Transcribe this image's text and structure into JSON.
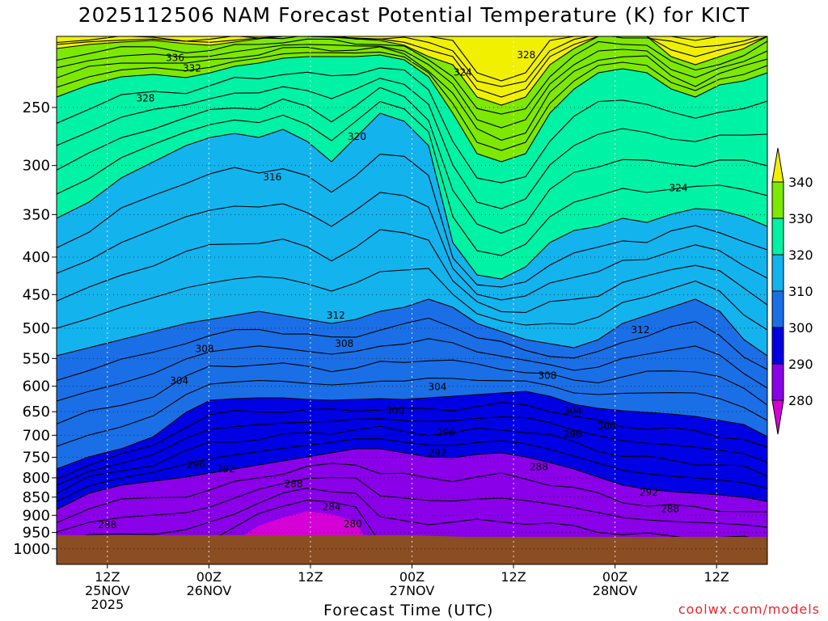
{
  "title": "2025112506 NAM Forecast Potential Temperature (K) for KICT",
  "credit": "coolwx.com/models",
  "chart_data": {
    "type": "heatmap",
    "title": "2025112506 NAM Forecast Potential Temperature (K) for KICT",
    "xlabel": "Forecast Time (UTC)",
    "ylabel": "",
    "y_scale": "log",
    "y_ticks": [
      250,
      300,
      350,
      400,
      450,
      500,
      550,
      600,
      650,
      700,
      750,
      800,
      850,
      900,
      950,
      1000
    ],
    "y_tick_labels": [
      "250",
      "300",
      "350",
      "400",
      "450",
      "500",
      "550",
      "600",
      "650",
      "700",
      "750",
      "800",
      "850",
      "900",
      "950",
      "1000"
    ],
    "y_range_hpa": [
      200,
      1050
    ],
    "x_range_hours": [
      6,
      90
    ],
    "x_ticks": [
      {
        "hour": 12,
        "lines": [
          "12Z",
          "25NOV",
          "2025"
        ]
      },
      {
        "hour": 24,
        "lines": [
          "00Z",
          "26NOV"
        ]
      },
      {
        "hour": 36,
        "lines": [
          "12Z"
        ]
      },
      {
        "hour": 48,
        "lines": [
          "00Z",
          "27NOV"
        ]
      },
      {
        "hour": 60,
        "lines": [
          "12Z"
        ]
      },
      {
        "hour": 72,
        "lines": [
          "00Z",
          "28NOV"
        ]
      },
      {
        "hour": 84,
        "lines": [
          "12Z"
        ]
      }
    ],
    "colorbar": {
      "levels": [
        280,
        290,
        300,
        310,
        320,
        330,
        340
      ],
      "labels": [
        "280",
        "290",
        "300",
        "310",
        "320",
        "330",
        "340"
      ],
      "colors": [
        "#d500d5",
        "#8a00e8",
        "#0000e4",
        "#1a6fe6",
        "#13b3ee",
        "#00f2a4",
        "#7de800",
        "#f0f000"
      ]
    },
    "ground_color": "#8b4d22",
    "ground_pressure_hpa": [
      {
        "hour": 6,
        "p": 958
      },
      {
        "hour": 48,
        "p": 958
      },
      {
        "hour": 54,
        "p": 963
      },
      {
        "hour": 90,
        "p": 963
      }
    ],
    "contour_labels": [
      {
        "value": "336",
        "hour": 20.0,
        "p": 214
      },
      {
        "value": "332",
        "hour": 22.0,
        "p": 221
      },
      {
        "value": "328",
        "hour": 16.5,
        "p": 243
      },
      {
        "value": "328",
        "hour": 61.5,
        "p": 212
      },
      {
        "value": "324",
        "hour": 54.0,
        "p": 224
      },
      {
        "value": "320",
        "hour": 41.5,
        "p": 274
      },
      {
        "value": "324",
        "hour": 79.5,
        "p": 322
      },
      {
        "value": "316",
        "hour": 31.5,
        "p": 311
      },
      {
        "value": "312",
        "hour": 39.0,
        "p": 480
      },
      {
        "value": "312",
        "hour": 75.0,
        "p": 503
      },
      {
        "value": "308",
        "hour": 23.5,
        "p": 534
      },
      {
        "value": "308",
        "hour": 40.0,
        "p": 525
      },
      {
        "value": "308",
        "hour": 64.0,
        "p": 580
      },
      {
        "value": "304",
        "hour": 20.5,
        "p": 590
      },
      {
        "value": "304",
        "hour": 51.0,
        "p": 601
      },
      {
        "value": "304",
        "hour": 67.0,
        "p": 648
      },
      {
        "value": "300",
        "hour": 46.0,
        "p": 648
      },
      {
        "value": "300",
        "hour": 71.0,
        "p": 680
      },
      {
        "value": "296",
        "hour": 52.0,
        "p": 694
      },
      {
        "value": "296",
        "hour": 67.0,
        "p": 698
      },
      {
        "value": "296",
        "hour": 22.5,
        "p": 767
      },
      {
        "value": "292",
        "hour": 51.0,
        "p": 740
      },
      {
        "value": "292",
        "hour": 26.0,
        "p": 778
      },
      {
        "value": "292",
        "hour": 76.0,
        "p": 838
      },
      {
        "value": "288",
        "hour": 34.0,
        "p": 816
      },
      {
        "value": "288",
        "hour": 63.0,
        "p": 773
      },
      {
        "value": "288",
        "hour": 78.5,
        "p": 882
      },
      {
        "value": "288",
        "hour": 12.0,
        "p": 927
      },
      {
        "value": "284",
        "hour": 38.5,
        "p": 877
      },
      {
        "value": "280",
        "hour": 41.0,
        "p": 925
      }
    ],
    "grid": "dotted-white"
  }
}
